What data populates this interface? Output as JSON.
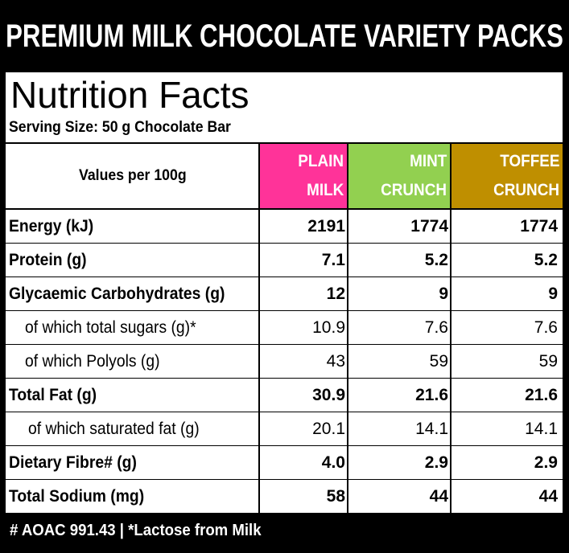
{
  "banner": "PREMIUM MILK CHOCOLATE VARIETY PACKS",
  "title": "Nutrition Facts",
  "serving": "Serving Size: 50 g Chocolate Bar",
  "header": {
    "label": "Values per 100g",
    "columns": [
      {
        "line1": "PLAIN",
        "line2": "MILK",
        "color": "#ff3399"
      },
      {
        "line1": "MINT",
        "line2": "CRUNCH",
        "color": "#92d050"
      },
      {
        "line1": "TOFFEE",
        "line2": "CRUNCH",
        "color": "#bf8f00"
      }
    ]
  },
  "rows": [
    {
      "label": "Energy (kJ)",
      "bold": true,
      "indent": 0,
      "values": [
        "2191",
        "1774",
        "1774"
      ]
    },
    {
      "label": "Protein (g)",
      "bold": true,
      "indent": 0,
      "values": [
        "7.1",
        "5.2",
        "5.2"
      ]
    },
    {
      "label": "Glycaemic Carbohydrates (g)",
      "bold": true,
      "indent": 0,
      "values": [
        "12",
        "9",
        "9"
      ]
    },
    {
      "label": "of which total sugars (g)*",
      "bold": false,
      "indent": 1,
      "values": [
        "10.9",
        "7.6",
        "7.6"
      ]
    },
    {
      "label": "of which Polyols (g)",
      "bold": false,
      "indent": 1,
      "values": [
        "43",
        "59",
        "59"
      ]
    },
    {
      "label": "Total Fat (g)",
      "bold": true,
      "indent": 0,
      "values": [
        "30.9",
        "21.6",
        "21.6"
      ]
    },
    {
      "label": "of which saturated fat (g)",
      "bold": false,
      "indent": 2,
      "values": [
        "20.1",
        "14.1",
        "14.1"
      ]
    },
    {
      "label": "Dietary Fibre# (g)",
      "bold": true,
      "indent": 0,
      "values": [
        "4.0",
        "2.9",
        "2.9"
      ]
    },
    {
      "label": "Total Sodium (mg)",
      "bold": true,
      "indent": 0,
      "values": [
        "58",
        "44",
        "44"
      ]
    }
  ],
  "footer": "# AOAC 991.43 | *Lactose from Milk"
}
